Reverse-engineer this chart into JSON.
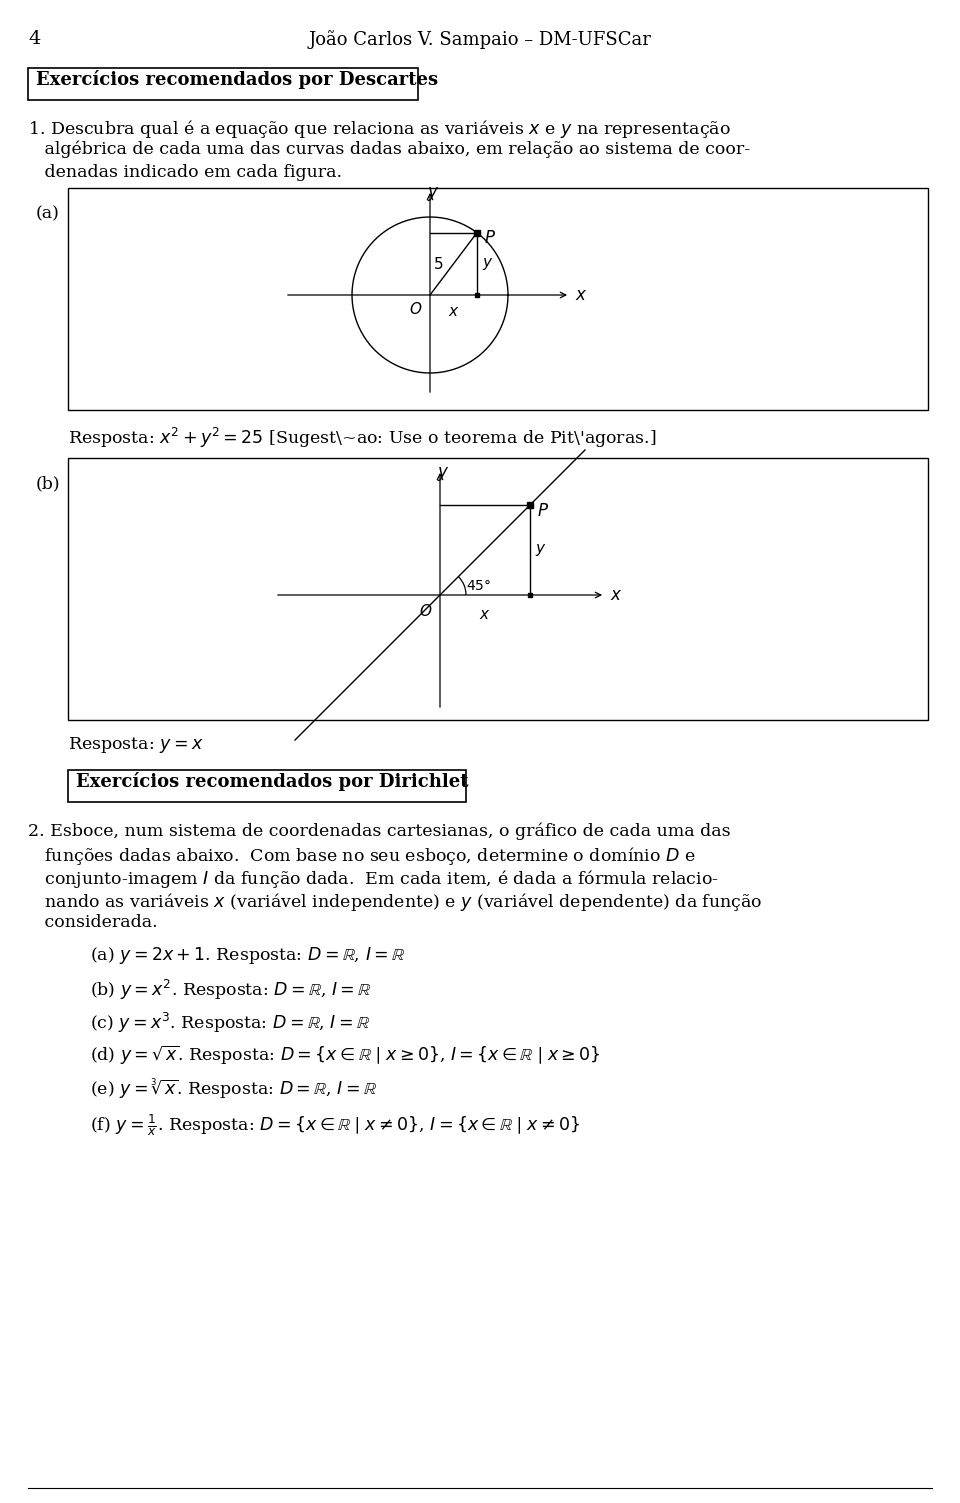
{
  "page_number": "4",
  "header": "João Carlos V. Sampaio – DM-UFSCar",
  "section1_title": "Exercícios recomendados por Descartes",
  "section2_title": "Exercícios recomendados por Dirichlet",
  "label_a": "(a)",
  "label_b": "(b)",
  "bg_color": "#ffffff",
  "text_color": "#000000",
  "p1_lines": [
    "1. Descubra qual é a equação que relaciona as variáveis $x$ e $y$ na representação",
    "   algébrica de cada uma das curvas dadas abaixo, em relação ao sistema de coor-",
    "   denadas indicado em cada figura."
  ],
  "resposta_a": "Resposta: $x^2 + y^2 = 25$ [Sugestão: Use o teorema de Pitágoras.]",
  "resposta_b": "Resposta: $y = x$",
  "p2_lines": [
    "2. Esboce, num sistema de coordenadas cartesianas, o gráfico de cada uma das",
    "   funções dadas abaixo.  Com base no seu esboço, determine o domínio $D$ e",
    "   conjunto-imagem $I$ da função dada.  Em cada item, é dada a fórmula relacio-",
    "   nando as variáveis $x$ (variável independente) e $y$ (variável dependente) da função",
    "   considerada."
  ],
  "items": [
    "(a) $y = 2x + 1$. Resposta: $D = \\mathbb{R}$, $I = \\mathbb{R}$",
    "(b) $y = x^2$. Resposta: $D = \\mathbb{R}$, $I = \\mathbb{R}$",
    "(c) $y = x^3$. Resposta: $D = \\mathbb{R}$, $I = \\mathbb{R}$",
    "(d) $y = \\sqrt{x}$. Resposta: $D = \\{x \\in \\mathbb{R} \\mid x \\geq 0\\}$, $I = \\{x \\in \\mathbb{R} \\mid x \\geq 0\\}$",
    "(e) $y = \\sqrt[3]{x}$. Resposta: $D = \\mathbb{R}$, $I = \\mathbb{R}$",
    "(f) $y = \\frac{1}{x}$. Resposta: $D = \\{x \\in \\mathbb{R} \\mid x \\neq 0\\}$, $I = \\{x \\in \\mathbb{R} \\mid x \\neq 0\\}$"
  ],
  "item_y_positions": [
    945,
    978,
    1011,
    1044,
    1077,
    1112
  ]
}
